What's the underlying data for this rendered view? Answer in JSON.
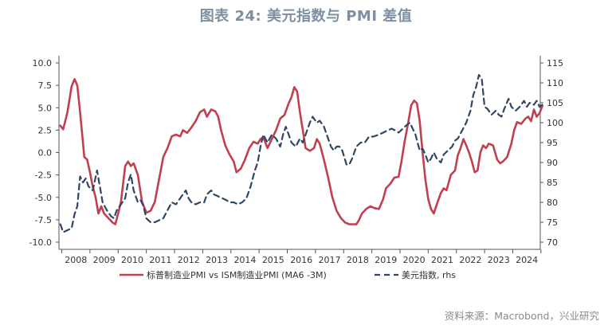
{
  "title": "图表 24: 美元指数与 PMI 差值",
  "source": "资料来源：Macrobond，兴业研究",
  "chart_data": {
    "type": "line",
    "legend": [
      "标普制造业PMI vs ISM制造业PMI (MA6 -3M)",
      "美元指数, rhs"
    ],
    "x_labels": [
      "2008",
      "2009",
      "2010",
      "2011",
      "2012",
      "2013",
      "2014",
      "2015",
      "2016",
      "2017",
      "2018",
      "2019",
      "2020",
      "2021",
      "2022",
      "2023",
      "2024"
    ],
    "xlim": [
      2007.9,
      2024.75
    ],
    "y_left": {
      "ticks": [
        "10.0",
        "7.5",
        "5.0",
        "2.5",
        "0.0",
        "-2.5",
        "-5.0",
        "-7.5",
        "-10.0"
      ],
      "ylim": [
        -10,
        10
      ]
    },
    "y_right": {
      "ticks": [
        "115",
        "110",
        "105",
        "100",
        "95",
        "90",
        "85",
        "80",
        "75",
        "70"
      ],
      "ylim": [
        70,
        115
      ]
    },
    "colors": {
      "pmi": "#c0404f",
      "dxy": "#2f4763"
    },
    "series": [
      {
        "name": "标普制造业PMI vs ISM制造业PMI (MA6 -3M)",
        "axis": "left",
        "points": [
          [
            2007.95,
            3
          ],
          [
            2008.05,
            2.6
          ],
          [
            2008.2,
            4.5
          ],
          [
            2008.35,
            7.4
          ],
          [
            2008.45,
            8.2
          ],
          [
            2008.55,
            7.5
          ],
          [
            2008.65,
            4.5
          ],
          [
            2008.8,
            -0.5
          ],
          [
            2008.9,
            -0.8
          ],
          [
            2009.0,
            -2.2
          ],
          [
            2009.1,
            -3.8
          ],
          [
            2009.2,
            -5.0
          ],
          [
            2009.3,
            -6.8
          ],
          [
            2009.4,
            -6.0
          ],
          [
            2009.5,
            -6.8
          ],
          [
            2009.65,
            -7.3
          ],
          [
            2009.8,
            -7.8
          ],
          [
            2009.9,
            -8.0
          ],
          [
            2010.0,
            -6.8
          ],
          [
            2010.1,
            -5.5
          ],
          [
            2010.25,
            -1.5
          ],
          [
            2010.35,
            -1.0
          ],
          [
            2010.45,
            -1.5
          ],
          [
            2010.55,
            -1.2
          ],
          [
            2010.7,
            -2.5
          ],
          [
            2010.85,
            -5.5
          ],
          [
            2011.0,
            -6.7
          ],
          [
            2011.15,
            -6.5
          ],
          [
            2011.3,
            -5.5
          ],
          [
            2011.45,
            -3.0
          ],
          [
            2011.6,
            -0.5
          ],
          [
            2011.75,
            0.5
          ],
          [
            2011.9,
            1.8
          ],
          [
            2012.05,
            2.0
          ],
          [
            2012.2,
            1.8
          ],
          [
            2012.3,
            2.5
          ],
          [
            2012.45,
            2.2
          ],
          [
            2012.6,
            2.8
          ],
          [
            2012.75,
            3.5
          ],
          [
            2012.9,
            4.5
          ],
          [
            2013.05,
            4.8
          ],
          [
            2013.15,
            4.0
          ],
          [
            2013.3,
            4.8
          ],
          [
            2013.45,
            4.6
          ],
          [
            2013.55,
            4.0
          ],
          [
            2013.65,
            2.5
          ],
          [
            2013.8,
            0.8
          ],
          [
            2013.95,
            -0.2
          ],
          [
            2014.1,
            -1.0
          ],
          [
            2014.2,
            -2.2
          ],
          [
            2014.35,
            -1.8
          ],
          [
            2014.5,
            -0.8
          ],
          [
            2014.65,
            0.5
          ],
          [
            2014.8,
            1.2
          ],
          [
            2014.95,
            1.0
          ],
          [
            2015.05,
            1.5
          ],
          [
            2015.15,
            1.7
          ],
          [
            2015.3,
            0.5
          ],
          [
            2015.45,
            1.5
          ],
          [
            2015.6,
            2.5
          ],
          [
            2015.75,
            3.8
          ],
          [
            2015.9,
            4.2
          ],
          [
            2016.05,
            5.5
          ],
          [
            2016.15,
            6.2
          ],
          [
            2016.25,
            7.3
          ],
          [
            2016.35,
            6.8
          ],
          [
            2016.45,
            4.5
          ],
          [
            2016.55,
            2.5
          ],
          [
            2016.65,
            0.5
          ],
          [
            2016.8,
            0.2
          ],
          [
            2016.95,
            0.5
          ],
          [
            2017.05,
            1.5
          ],
          [
            2017.15,
            1.0
          ],
          [
            2017.3,
            -0.8
          ],
          [
            2017.45,
            -2.8
          ],
          [
            2017.6,
            -5.0
          ],
          [
            2017.75,
            -6.5
          ],
          [
            2017.9,
            -7.3
          ],
          [
            2018.05,
            -7.8
          ],
          [
            2018.2,
            -8.0
          ],
          [
            2018.35,
            -8.0
          ],
          [
            2018.45,
            -8.0
          ],
          [
            2018.55,
            -7.5
          ],
          [
            2018.65,
            -6.8
          ],
          [
            2018.8,
            -6.3
          ],
          [
            2018.95,
            -6.0
          ],
          [
            2019.1,
            -6.2
          ],
          [
            2019.25,
            -6.3
          ],
          [
            2019.4,
            -5.2
          ],
          [
            2019.5,
            -4.0
          ],
          [
            2019.65,
            -3.5
          ],
          [
            2019.8,
            -2.8
          ],
          [
            2019.95,
            -2.7
          ],
          [
            2020.05,
            -1.0
          ],
          [
            2020.15,
            1.0
          ],
          [
            2020.3,
            3.5
          ],
          [
            2020.4,
            5.3
          ],
          [
            2020.5,
            5.8
          ],
          [
            2020.6,
            5.5
          ],
          [
            2020.7,
            3.5
          ],
          [
            2020.8,
            0.0
          ],
          [
            2020.9,
            -3.0
          ],
          [
            2021.0,
            -5.2
          ],
          [
            2021.1,
            -6.3
          ],
          [
            2021.2,
            -6.8
          ],
          [
            2021.3,
            -5.8
          ],
          [
            2021.45,
            -4.5
          ],
          [
            2021.55,
            -4.0
          ],
          [
            2021.65,
            -4.2
          ],
          [
            2021.8,
            -2.5
          ],
          [
            2021.95,
            -2.0
          ],
          [
            2022.05,
            -0.3
          ],
          [
            2022.15,
            0.5
          ],
          [
            2022.25,
            1.5
          ],
          [
            2022.35,
            0.8
          ],
          [
            2022.45,
            0.0
          ],
          [
            2022.55,
            -1.0
          ],
          [
            2022.65,
            -2.2
          ],
          [
            2022.75,
            -2.0
          ],
          [
            2022.85,
            0.0
          ],
          [
            2022.95,
            0.8
          ],
          [
            2023.05,
            0.5
          ],
          [
            2023.15,
            1.0
          ],
          [
            2023.3,
            0.8
          ],
          [
            2023.45,
            -0.8
          ],
          [
            2023.55,
            -1.2
          ],
          [
            2023.65,
            -1.0
          ],
          [
            2023.8,
            -0.5
          ],
          [
            2023.95,
            1.0
          ],
          [
            2024.05,
            2.5
          ],
          [
            2024.15,
            3.4
          ],
          [
            2024.3,
            3.2
          ],
          [
            2024.45,
            3.8
          ],
          [
            2024.55,
            4.0
          ],
          [
            2024.65,
            3.5
          ],
          [
            2024.75,
            4.8
          ],
          [
            2024.85,
            4.0
          ],
          [
            2024.95,
            4.4
          ],
          [
            2025.05,
            5.2
          ]
        ]
      },
      {
        "name": "美元指数, rhs",
        "axis": "right",
        "points": [
          [
            2007.95,
            74.5
          ],
          [
            2008.05,
            72.5
          ],
          [
            2008.2,
            73
          ],
          [
            2008.35,
            73.5
          ],
          [
            2008.45,
            77
          ],
          [
            2008.55,
            79
          ],
          [
            2008.65,
            86.5
          ],
          [
            2008.75,
            85
          ],
          [
            2008.85,
            86
          ],
          [
            2008.95,
            84
          ],
          [
            2009.1,
            83
          ],
          [
            2009.25,
            88
          ],
          [
            2009.35,
            84
          ],
          [
            2009.45,
            80
          ],
          [
            2009.6,
            78
          ],
          [
            2009.75,
            76.5
          ],
          [
            2009.85,
            76
          ],
          [
            2009.95,
            78
          ],
          [
            2010.1,
            79.5
          ],
          [
            2010.25,
            81
          ],
          [
            2010.35,
            85
          ],
          [
            2010.45,
            87
          ],
          [
            2010.55,
            83
          ],
          [
            2010.7,
            80
          ],
          [
            2010.8,
            80.5
          ],
          [
            2010.9,
            79
          ],
          [
            2011.0,
            76
          ],
          [
            2011.15,
            75
          ],
          [
            2011.3,
            75
          ],
          [
            2011.45,
            75.5
          ],
          [
            2011.6,
            76
          ],
          [
            2011.75,
            78
          ],
          [
            2011.9,
            80
          ],
          [
            2012.05,
            79.5
          ],
          [
            2012.15,
            80.5
          ],
          [
            2012.3,
            82
          ],
          [
            2012.4,
            83
          ],
          [
            2012.5,
            81
          ],
          [
            2012.6,
            80
          ],
          [
            2012.75,
            79.5
          ],
          [
            2012.9,
            80
          ],
          [
            2013.05,
            80
          ],
          [
            2013.15,
            82
          ],
          [
            2013.3,
            83
          ],
          [
            2013.4,
            82
          ],
          [
            2013.55,
            81.5
          ],
          [
            2013.7,
            81
          ],
          [
            2013.85,
            80.5
          ],
          [
            2013.95,
            80
          ],
          [
            2014.1,
            80
          ],
          [
            2014.25,
            79.5
          ],
          [
            2014.4,
            80
          ],
          [
            2014.55,
            81
          ],
          [
            2014.7,
            84
          ],
          [
            2014.85,
            88
          ],
          [
            2014.95,
            90
          ],
          [
            2015.05,
            94
          ],
          [
            2015.15,
            97
          ],
          [
            2015.3,
            95
          ],
          [
            2015.45,
            97
          ],
          [
            2015.6,
            96
          ],
          [
            2015.75,
            94
          ],
          [
            2015.85,
            97
          ],
          [
            2015.95,
            99
          ],
          [
            2016.05,
            97
          ],
          [
            2016.15,
            95
          ],
          [
            2016.3,
            94
          ],
          [
            2016.45,
            96
          ],
          [
            2016.55,
            95
          ],
          [
            2016.65,
            97
          ],
          [
            2016.8,
            100
          ],
          [
            2016.9,
            101.5
          ],
          [
            2017.05,
            100
          ],
          [
            2017.15,
            100.5
          ],
          [
            2017.3,
            99
          ],
          [
            2017.45,
            96
          ],
          [
            2017.55,
            94
          ],
          [
            2017.65,
            93
          ],
          [
            2017.75,
            94
          ],
          [
            2017.85,
            94
          ],
          [
            2017.95,
            93
          ],
          [
            2018.1,
            89.5
          ],
          [
            2018.2,
            89.5
          ],
          [
            2018.3,
            91
          ],
          [
            2018.45,
            94
          ],
          [
            2018.6,
            95
          ],
          [
            2018.75,
            95
          ],
          [
            2018.9,
            96.5
          ],
          [
            2019.05,
            96.5
          ],
          [
            2019.25,
            97
          ],
          [
            2019.4,
            97.5
          ],
          [
            2019.55,
            98
          ],
          [
            2019.7,
            98.5
          ],
          [
            2019.85,
            98
          ],
          [
            2019.95,
            97.5
          ],
          [
            2020.1,
            98.5
          ],
          [
            2020.25,
            99.5
          ],
          [
            2020.35,
            100
          ],
          [
            2020.45,
            98.5
          ],
          [
            2020.55,
            97
          ],
          [
            2020.7,
            93
          ],
          [
            2020.8,
            93.5
          ],
          [
            2020.9,
            92
          ],
          [
            2021.0,
            90
          ],
          [
            2021.1,
            91
          ],
          [
            2021.2,
            92.5
          ],
          [
            2021.3,
            91
          ],
          [
            2021.45,
            90
          ],
          [
            2021.55,
            92
          ],
          [
            2021.7,
            93
          ],
          [
            2021.85,
            94
          ],
          [
            2021.95,
            95.5
          ],
          [
            2022.05,
            96
          ],
          [
            2022.2,
            98
          ],
          [
            2022.35,
            100
          ],
          [
            2022.5,
            103
          ],
          [
            2022.6,
            107
          ],
          [
            2022.7,
            109
          ],
          [
            2022.8,
            112
          ],
          [
            2022.9,
            111
          ],
          [
            2023.0,
            104
          ],
          [
            2023.1,
            103.5
          ],
          [
            2023.25,
            102
          ],
          [
            2023.4,
            103
          ],
          [
            2023.5,
            102
          ],
          [
            2023.6,
            101.5
          ],
          [
            2023.7,
            103.5
          ],
          [
            2023.85,
            106
          ],
          [
            2023.95,
            104
          ],
          [
            2024.1,
            103
          ],
          [
            2024.25,
            104
          ],
          [
            2024.4,
            105.5
          ],
          [
            2024.5,
            104
          ],
          [
            2024.6,
            105
          ],
          [
            2024.75,
            104.5
          ],
          [
            2024.85,
            105.5
          ],
          [
            2024.95,
            104
          ],
          [
            2025.05,
            104.5
          ]
        ]
      }
    ]
  }
}
